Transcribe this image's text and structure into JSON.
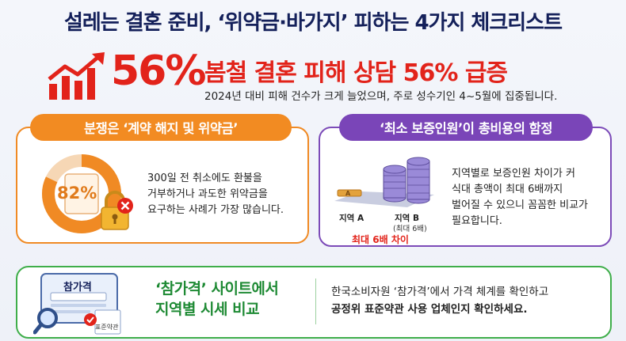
{
  "title": "설레는 결혼 준비, ‘위약금·바가지’ 피하는 4가지 체크리스트",
  "headline": {
    "percent": "56%",
    "text": "봄철 결혼 피해 상담 56% 급증",
    "sub": "2024년 대비 피해 건수가 크게 늘었으며, 주로 성수기인 4~5월에 집중됩니다."
  },
  "card_left": {
    "pill": "분쟁은 ‘계약 해지 및 위약금’",
    "donut_label": "82%",
    "donut_fraction": 0.82,
    "lines": [
      "300일 전 취소에도 환불을",
      "거부하거나 과도한 위약금을",
      "요구하는 사례가 가장 많습니다."
    ]
  },
  "card_right": {
    "pill": "‘최소 보증인원’이 총비용의 함정",
    "coin_a_mark": "A",
    "region_a": "지역 A",
    "region_b": "지역 B",
    "region_b_sub": "(최대 6배)",
    "max_diff": "최대 6배 차이",
    "lines": [
      "지역별로 보증인원 차이가 커",
      "식대 총액이 최대 6배까지",
      "벌어질 수 있으니 꼼꼼한 비교가",
      "필요합니다."
    ]
  },
  "card_bottom": {
    "screen_title": "참가격",
    "doc_label": "표준약관",
    "head": [
      "‘참가격’ 사이트에서",
      "지역별 시세 비교"
    ],
    "lines": [
      "한국소비자원 ‘참가격’에서 가격 체계를 확인하고",
      "공정위 표준약관 사용 업체인지 확인하세요."
    ]
  },
  "colors": {
    "red": "#e2231a",
    "orange": "#f28b22",
    "purple": "#7a45b8",
    "green": "#1e8a34",
    "navy": "#14205a"
  }
}
